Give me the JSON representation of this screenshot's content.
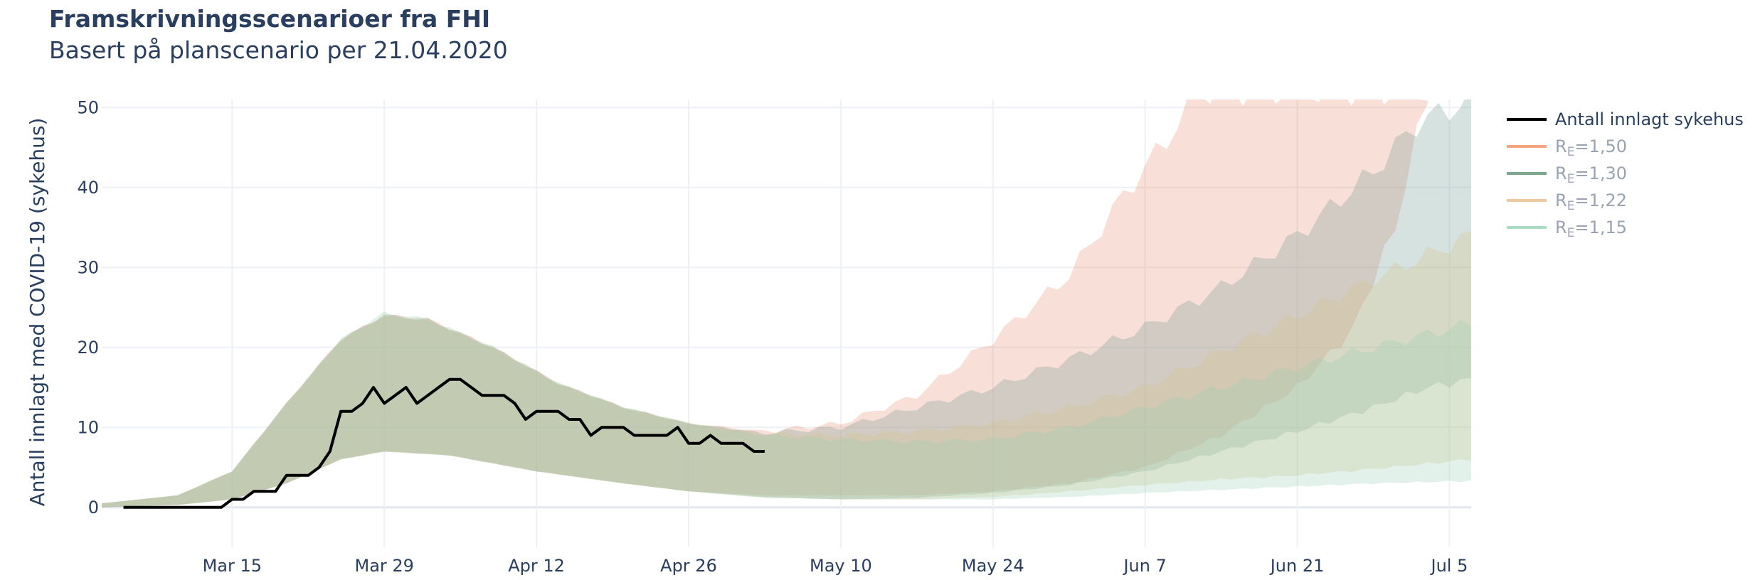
{
  "chart_data": {
    "type": "area",
    "title": "Framskrivningsscenarioer fra FHI",
    "subtitle": "Basert på planscenario per 21.04.2020",
    "ylabel": "Antall innlagt med COVID-19 (sykehus)",
    "xlabel": "",
    "x_range": [
      "2020-03-03",
      "2020-07-07"
    ],
    "ylim": [
      -5,
      51
    ],
    "y_ticks": [
      0,
      10,
      20,
      30,
      40,
      50
    ],
    "x_ticks": [
      {
        "date": "2020-03-15",
        "label": "Mar 15"
      },
      {
        "date": "2020-03-29",
        "label": "Mar 29"
      },
      {
        "date": "2020-04-12",
        "label": "Apr 12"
      },
      {
        "date": "2020-04-26",
        "label": "Apr 26"
      },
      {
        "date": "2020-05-10",
        "label": "May 10"
      },
      {
        "date": "2020-05-24",
        "label": "May 24"
      },
      {
        "date": "2020-06-07",
        "label": "Jun 7"
      },
      {
        "date": "2020-06-21",
        "label": "Jun 21"
      },
      {
        "date": "2020-07-05",
        "label": "Jul 5"
      }
    ],
    "grid": true,
    "legend_position": "right",
    "observed": {
      "name": "Antall innlagt sykehus",
      "color": "#000000",
      "points": [
        [
          "2020-03-05",
          0
        ],
        [
          "2020-03-13",
          0
        ],
        [
          "2020-03-14",
          0
        ],
        [
          "2020-03-15",
          1
        ],
        [
          "2020-03-16",
          1
        ],
        [
          "2020-03-17",
          2
        ],
        [
          "2020-03-18",
          2
        ],
        [
          "2020-03-19",
          2
        ],
        [
          "2020-03-20",
          4
        ],
        [
          "2020-03-21",
          4
        ],
        [
          "2020-03-22",
          4
        ],
        [
          "2020-03-23",
          5
        ],
        [
          "2020-03-24",
          7
        ],
        [
          "2020-03-25",
          12
        ],
        [
          "2020-03-26",
          12
        ],
        [
          "2020-03-27",
          13
        ],
        [
          "2020-03-28",
          15
        ],
        [
          "2020-03-29",
          13
        ],
        [
          "2020-03-30",
          14
        ],
        [
          "2020-03-31",
          15
        ],
        [
          "2020-04-01",
          13
        ],
        [
          "2020-04-02",
          14
        ],
        [
          "2020-04-03",
          15
        ],
        [
          "2020-04-04",
          16
        ],
        [
          "2020-04-05",
          16
        ],
        [
          "2020-04-06",
          15
        ],
        [
          "2020-04-07",
          14
        ],
        [
          "2020-04-08",
          14
        ],
        [
          "2020-04-09",
          14
        ],
        [
          "2020-04-10",
          13
        ],
        [
          "2020-04-11",
          11
        ],
        [
          "2020-04-12",
          12
        ],
        [
          "2020-04-13",
          12
        ],
        [
          "2020-04-14",
          12
        ],
        [
          "2020-04-15",
          11
        ],
        [
          "2020-04-16",
          11
        ],
        [
          "2020-04-17",
          9
        ],
        [
          "2020-04-18",
          10
        ],
        [
          "2020-04-19",
          10
        ],
        [
          "2020-04-20",
          10
        ],
        [
          "2020-04-21",
          9
        ],
        [
          "2020-04-22",
          9
        ],
        [
          "2020-04-23",
          9
        ],
        [
          "2020-04-24",
          9
        ],
        [
          "2020-04-25",
          10
        ],
        [
          "2020-04-26",
          8
        ],
        [
          "2020-04-27",
          8
        ],
        [
          "2020-04-28",
          9
        ],
        [
          "2020-04-29",
          8
        ],
        [
          "2020-04-30",
          8
        ],
        [
          "2020-05-01",
          8
        ],
        [
          "2020-05-02",
          7
        ],
        [
          "2020-05-03",
          7
        ]
      ]
    },
    "series": [
      {
        "name": "RE=1,50",
        "label_main": "R",
        "label_sub": "E",
        "label_value": "=1,50",
        "color": "#f4a582",
        "fill": "rgba(233,150,122,0.30)",
        "upper": [
          [
            "2020-03-03",
            0.5
          ],
          [
            "2020-03-10",
            1.5
          ],
          [
            "2020-03-15",
            4.5
          ],
          [
            "2020-03-20",
            13
          ],
          [
            "2020-03-25",
            21
          ],
          [
            "2020-03-29",
            24
          ],
          [
            "2020-04-02",
            23.5
          ],
          [
            "2020-04-08",
            20
          ],
          [
            "2020-04-14",
            15.5
          ],
          [
            "2020-04-20",
            12.5
          ],
          [
            "2020-04-26",
            10.5
          ],
          [
            "2020-05-03",
            9.5
          ],
          [
            "2020-05-10",
            10.5
          ],
          [
            "2020-05-17",
            14
          ],
          [
            "2020-05-24",
            21
          ],
          [
            "2020-05-31",
            29
          ],
          [
            "2020-06-05",
            39
          ],
          [
            "2020-06-09",
            46
          ],
          [
            "2020-06-12",
            52
          ]
        ],
        "lower": [
          [
            "2020-03-03",
            0
          ],
          [
            "2020-03-10",
            0.3
          ],
          [
            "2020-03-15",
            1
          ],
          [
            "2020-03-20",
            3
          ],
          [
            "2020-03-25",
            6
          ],
          [
            "2020-03-29",
            7
          ],
          [
            "2020-04-04",
            6.5
          ],
          [
            "2020-04-12",
            4.5
          ],
          [
            "2020-04-20",
            3
          ],
          [
            "2020-04-26",
            2
          ],
          [
            "2020-05-03",
            1.5
          ],
          [
            "2020-05-10",
            1.5
          ],
          [
            "2020-05-17",
            1.5
          ],
          [
            "2020-05-24",
            2
          ],
          [
            "2020-05-31",
            3
          ],
          [
            "2020-06-07",
            5
          ],
          [
            "2020-06-14",
            9
          ],
          [
            "2020-06-21",
            15
          ],
          [
            "2020-06-26",
            22
          ],
          [
            "2020-06-30",
            35
          ],
          [
            "2020-07-03",
            52
          ]
        ]
      },
      {
        "name": "RE=1,30",
        "label_main": "R",
        "label_sub": "E",
        "label_value": "=1,30",
        "color": "#7fa68d",
        "fill": "rgba(120,160,150,0.30)",
        "upper": [
          [
            "2020-03-03",
            0.5
          ],
          [
            "2020-03-10",
            1.5
          ],
          [
            "2020-03-15",
            4.5
          ],
          [
            "2020-03-20",
            13
          ],
          [
            "2020-03-25",
            21
          ],
          [
            "2020-03-29",
            24
          ],
          [
            "2020-04-02",
            23.5
          ],
          [
            "2020-04-08",
            20
          ],
          [
            "2020-04-14",
            15.5
          ],
          [
            "2020-04-20",
            12.5
          ],
          [
            "2020-04-26",
            10.5
          ],
          [
            "2020-05-03",
            9.3
          ],
          [
            "2020-05-10",
            10
          ],
          [
            "2020-05-17",
            12.5
          ],
          [
            "2020-05-24",
            15
          ],
          [
            "2020-05-31",
            18.5
          ],
          [
            "2020-06-07",
            22.5
          ],
          [
            "2020-06-14",
            27.5
          ],
          [
            "2020-06-21",
            34
          ],
          [
            "2020-06-28",
            42
          ],
          [
            "2020-07-02",
            48
          ],
          [
            "2020-07-07",
            51
          ]
        ],
        "lower": [
          [
            "2020-03-03",
            0
          ],
          [
            "2020-03-10",
            0.3
          ],
          [
            "2020-03-15",
            1
          ],
          [
            "2020-03-20",
            3
          ],
          [
            "2020-03-25",
            6
          ],
          [
            "2020-03-29",
            7
          ],
          [
            "2020-04-04",
            6.5
          ],
          [
            "2020-04-12",
            4.5
          ],
          [
            "2020-04-20",
            3
          ],
          [
            "2020-04-26",
            2
          ],
          [
            "2020-05-03",
            1.3
          ],
          [
            "2020-05-10",
            1
          ],
          [
            "2020-05-17",
            1.2
          ],
          [
            "2020-05-24",
            1.8
          ],
          [
            "2020-05-31",
            2.8
          ],
          [
            "2020-06-07",
            4.5
          ],
          [
            "2020-06-14",
            7
          ],
          [
            "2020-06-21",
            9.5
          ],
          [
            "2020-06-28",
            12.5
          ],
          [
            "2020-07-03",
            15
          ],
          [
            "2020-07-07",
            16
          ]
        ]
      },
      {
        "name": "RE=1,22",
        "label_main": "R",
        "label_sub": "E",
        "label_value": "=1,22",
        "color": "#f1c9a0",
        "fill": "rgba(215,195,140,0.30)",
        "upper": [
          [
            "2020-03-03",
            0.5
          ],
          [
            "2020-03-10",
            1.5
          ],
          [
            "2020-03-15",
            4.5
          ],
          [
            "2020-03-20",
            13
          ],
          [
            "2020-03-25",
            21
          ],
          [
            "2020-03-29",
            24
          ],
          [
            "2020-04-02",
            23.5
          ],
          [
            "2020-04-08",
            20
          ],
          [
            "2020-04-14",
            15.5
          ],
          [
            "2020-04-20",
            12.5
          ],
          [
            "2020-04-26",
            10.5
          ],
          [
            "2020-05-03",
            9.2
          ],
          [
            "2020-05-10",
            9
          ],
          [
            "2020-05-17",
            9.5
          ],
          [
            "2020-05-24",
            10.5
          ],
          [
            "2020-05-31",
            12.5
          ],
          [
            "2020-06-07",
            15
          ],
          [
            "2020-06-14",
            19.5
          ],
          [
            "2020-06-21",
            24
          ],
          [
            "2020-06-28",
            28.5
          ],
          [
            "2020-07-07",
            34
          ]
        ],
        "lower": [
          [
            "2020-03-03",
            0
          ],
          [
            "2020-03-10",
            0.3
          ],
          [
            "2020-03-15",
            1
          ],
          [
            "2020-03-20",
            3
          ],
          [
            "2020-03-25",
            6
          ],
          [
            "2020-03-29",
            7
          ],
          [
            "2020-04-04",
            6.5
          ],
          [
            "2020-04-12",
            4.5
          ],
          [
            "2020-04-20",
            3
          ],
          [
            "2020-04-26",
            2
          ],
          [
            "2020-05-03",
            1.2
          ],
          [
            "2020-05-10",
            1
          ],
          [
            "2020-05-17",
            1
          ],
          [
            "2020-05-24",
            1.3
          ],
          [
            "2020-05-31",
            2
          ],
          [
            "2020-06-07",
            2.8
          ],
          [
            "2020-06-14",
            3.5
          ],
          [
            "2020-06-21",
            4
          ],
          [
            "2020-06-28",
            4.8
          ],
          [
            "2020-07-07",
            6
          ]
        ]
      },
      {
        "name": "RE=1,15",
        "label_main": "R",
        "label_sub": "E",
        "label_value": "=1,15",
        "color": "#a8dcc2",
        "fill": "rgba(150,210,180,0.28)",
        "upper": [
          [
            "2020-03-03",
            0.5
          ],
          [
            "2020-03-10",
            1.5
          ],
          [
            "2020-03-15",
            4.5
          ],
          [
            "2020-03-20",
            13
          ],
          [
            "2020-03-25",
            21
          ],
          [
            "2020-03-29",
            24.3
          ],
          [
            "2020-04-02",
            23.5
          ],
          [
            "2020-04-08",
            20
          ],
          [
            "2020-04-14",
            15.5
          ],
          [
            "2020-04-20",
            12.5
          ],
          [
            "2020-04-26",
            10.5
          ],
          [
            "2020-05-03",
            9
          ],
          [
            "2020-05-10",
            8.5
          ],
          [
            "2020-05-17",
            8.2
          ],
          [
            "2020-05-24",
            8.5
          ],
          [
            "2020-05-31",
            10
          ],
          [
            "2020-06-07",
            12.5
          ],
          [
            "2020-06-14",
            15
          ],
          [
            "2020-06-21",
            17.5
          ],
          [
            "2020-06-28",
            20
          ],
          [
            "2020-07-07",
            23
          ]
        ],
        "lower": [
          [
            "2020-03-03",
            0
          ],
          [
            "2020-03-10",
            0.3
          ],
          [
            "2020-03-15",
            1
          ],
          [
            "2020-03-20",
            3
          ],
          [
            "2020-03-25",
            6
          ],
          [
            "2020-03-29",
            7
          ],
          [
            "2020-04-04",
            6.5
          ],
          [
            "2020-04-12",
            4.5
          ],
          [
            "2020-04-20",
            3
          ],
          [
            "2020-04-26",
            2
          ],
          [
            "2020-05-03",
            1.2
          ],
          [
            "2020-05-10",
            1
          ],
          [
            "2020-05-17",
            1
          ],
          [
            "2020-05-24",
            1
          ],
          [
            "2020-05-31",
            1.3
          ],
          [
            "2020-06-07",
            1.8
          ],
          [
            "2020-06-14",
            2.2
          ],
          [
            "2020-06-21",
            2.6
          ],
          [
            "2020-06-28",
            3
          ],
          [
            "2020-07-07",
            3.3
          ]
        ]
      }
    ]
  }
}
